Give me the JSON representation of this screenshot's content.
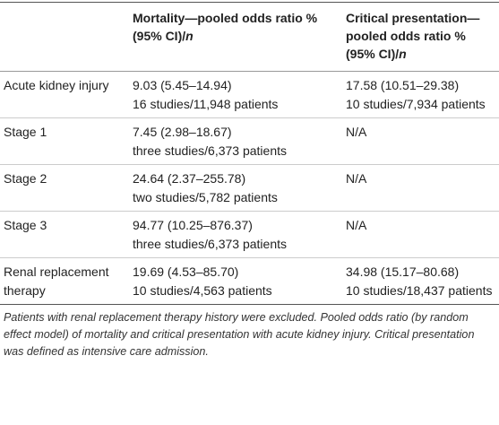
{
  "table": {
    "headers": [
      {
        "text": "Mortality—pooled odds ratio % (95% CI)/",
        "italic": "n"
      },
      {
        "text": "Critical presentation—pooled odds ratio % (95% CI)/",
        "italic": "n"
      }
    ],
    "rows": [
      {
        "label": "Acute kidney injury",
        "mortality": [
          "9.03 (5.45–14.94)",
          "16 studies/11,948 patients"
        ],
        "critical": [
          "17.58 (10.51–29.38)",
          "10 studies/7,934 patients"
        ]
      },
      {
        "label": "Stage 1",
        "mortality": [
          "7.45 (2.98–18.67)",
          "three studies/6,373 patients"
        ],
        "critical": [
          "N/A"
        ]
      },
      {
        "label": "Stage 2",
        "mortality": [
          "24.64 (2.37–255.78)",
          "two studies/5,782 patients"
        ],
        "critical": [
          "N/A"
        ]
      },
      {
        "label": "Stage 3",
        "mortality": [
          "94.77 (10.25–876.37)",
          "three studies/6,373 patients"
        ],
        "critical": [
          "N/A"
        ]
      },
      {
        "label": "Renal replacement therapy",
        "mortality": [
          "19.69 (4.53–85.70)",
          "10 studies/4,563 patients"
        ],
        "critical": [
          "34.98 (15.17–80.68)",
          "10 studies/18,437 patients"
        ]
      }
    ],
    "footnote": "Patients with renal replacement therapy history were excluded. Pooled odds ratio (by random effect model) of mortality and critical presentation with acute kidney injury. Critical presentation was defined as intensive care admission."
  }
}
